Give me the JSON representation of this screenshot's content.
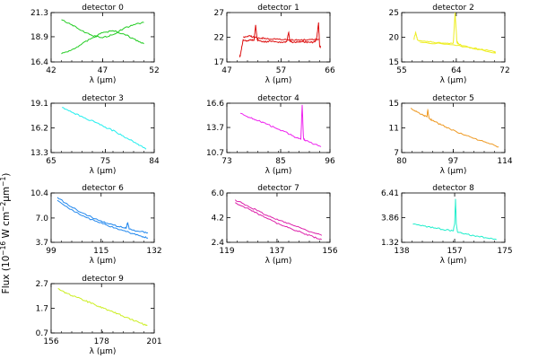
{
  "figure": {
    "ylabel_main": "Flux (10",
    "ylabel_exp1": "−16",
    "ylabel_mid": " W cm",
    "ylabel_exp2": "−2",
    "ylabel_mid2": "μm",
    "ylabel_exp3": "−1",
    "ylabel_close": ")",
    "xlabel": "λ (μm)"
  },
  "chart_data": [
    {
      "type": "line",
      "title": "detector 0",
      "color": "#22cc22",
      "xlim": [
        42,
        52
      ],
      "ylim": [
        16.4,
        21.3
      ],
      "xticks": [
        "42",
        "47",
        "52"
      ],
      "yticks": [
        "16.4",
        "18.9",
        "21.3"
      ],
      "series": [
        {
          "x": [
            43,
            44,
            45,
            46,
            47,
            48,
            49,
            50,
            51
          ],
          "y": [
            20.6,
            20.1,
            19.5,
            19.0,
            18.8,
            19.1,
            19.7,
            20.1,
            20.3
          ]
        },
        {
          "x": [
            43,
            44,
            45,
            46,
            47,
            48,
            49,
            50,
            51
          ],
          "y": [
            17.2,
            17.6,
            18.2,
            18.8,
            19.3,
            19.5,
            19.2,
            18.7,
            18.2
          ]
        }
      ]
    },
    {
      "type": "line",
      "title": "detector 1",
      "color": "#dd1111",
      "xlim": [
        47,
        66
      ],
      "ylim": [
        17,
        27
      ],
      "xticks": [
        "47",
        "57",
        "66"
      ],
      "yticks": [
        "17",
        "22",
        "27"
      ],
      "series": [
        {
          "x": [
            49.3,
            49.5,
            50.0,
            50.8,
            51.5,
            52.0,
            52.3,
            52.6,
            53.0,
            54.0,
            55.0,
            56.0,
            57.0,
            58.0,
            58.4,
            58.6,
            59.0,
            60.0,
            61.0,
            62.0,
            63.0,
            63.5,
            63.9,
            64.1,
            64.3
          ],
          "y": [
            18.0,
            18.5,
            21.5,
            21.3,
            21.5,
            21.3,
            24.5,
            21.5,
            21.3,
            21.1,
            21.2,
            21.1,
            21.0,
            21.1,
            23.0,
            21.2,
            21.0,
            21.0,
            21.1,
            21.0,
            21.0,
            21.4,
            25.0,
            20.0,
            20.2
          ]
        },
        {
          "x": [
            50.0,
            51.0,
            52.0,
            53.0,
            54.0,
            56.0,
            58.0,
            60.0,
            62.0,
            64.0
          ],
          "y": [
            22.0,
            22.3,
            22.0,
            21.8,
            21.8,
            21.6,
            21.5,
            21.4,
            21.5,
            21.6
          ]
        }
      ]
    },
    {
      "type": "line",
      "title": "detector 2",
      "color": "#eeee22",
      "xlim": [
        55,
        72
      ],
      "ylim": [
        15,
        25
      ],
      "xticks": [
        "55",
        "64",
        "72"
      ],
      "yticks": [
        "15",
        "20",
        "25"
      ],
      "series": [
        {
          "x": [
            57.0,
            57.3,
            57.6,
            58.0,
            60.0,
            62.0,
            63.5,
            63.8,
            64.1,
            64.5,
            66.0,
            68.0,
            70.0,
            70.5
          ],
          "y": [
            19.5,
            21.0,
            19.5,
            19.3,
            19.0,
            18.8,
            18.8,
            25.0,
            19.0,
            18.5,
            18.0,
            17.5,
            17.2,
            17.0
          ]
        },
        {
          "x": [
            58.0,
            62.0,
            66.0,
            70.5
          ],
          "y": [
            19.0,
            18.6,
            18.0,
            16.8
          ]
        }
      ]
    },
    {
      "type": "line",
      "title": "detector 3",
      "color": "#22eeee",
      "xlim": [
        65,
        84
      ],
      "ylim": [
        13.3,
        19.1
      ],
      "xticks": [
        "65",
        "75",
        "84"
      ],
      "yticks": [
        "13.3",
        "16.2",
        "19.1"
      ],
      "series": [
        {
          "x": [
            67,
            69,
            71,
            73,
            75,
            77,
            79,
            81,
            82.5
          ],
          "y": [
            18.6,
            18.0,
            17.4,
            16.9,
            16.3,
            15.7,
            15.0,
            14.3,
            13.7
          ]
        }
      ]
    },
    {
      "type": "line",
      "title": "detector 4",
      "color": "#ee22ee",
      "xlim": [
        73,
        96
      ],
      "ylim": [
        10.7,
        16.6
      ],
      "xticks": [
        "73",
        "85",
        "96"
      ],
      "yticks": [
        "10.7",
        "13.7",
        "16.6"
      ],
      "series": [
        {
          "x": [
            76,
            78,
            80,
            82,
            84,
            86,
            88,
            89.5,
            89.8,
            90.1,
            90.4,
            92,
            94
          ],
          "y": [
            15.4,
            14.9,
            14.5,
            14.1,
            13.6,
            13.2,
            12.6,
            12.3,
            16.4,
            12.4,
            12.2,
            11.8,
            11.4
          ]
        }
      ]
    },
    {
      "type": "line",
      "title": "detector 5",
      "color": "#ee9922",
      "xlim": [
        80,
        114
      ],
      "ylim": [
        7,
        15
      ],
      "xticks": [
        "80",
        "97",
        "114"
      ],
      "yticks": [
        "7",
        "11",
        "15"
      ],
      "series": [
        {
          "x": [
            83,
            85,
            87,
            88.3,
            88.6,
            89.0,
            90,
            93,
            96,
            100,
            104,
            108,
            112
          ],
          "y": [
            14.2,
            13.6,
            13.1,
            12.8,
            13.9,
            12.6,
            12.2,
            11.5,
            10.8,
            10.0,
            9.3,
            8.6,
            7.9
          ]
        }
      ]
    },
    {
      "type": "line",
      "title": "detector 6",
      "color": "#2288ee",
      "xlim": [
        99,
        132
      ],
      "ylim": [
        3.7,
        10.4
      ],
      "xticks": [
        "99",
        "115",
        "132"
      ],
      "yticks": [
        "3.7",
        "7.0",
        "10.4"
      ],
      "series": [
        {
          "x": [
            101,
            105,
            109,
            113,
            117,
            121,
            123,
            123.5,
            124,
            127,
            130
          ],
          "y": [
            9.8,
            8.6,
            7.7,
            6.9,
            6.3,
            5.8,
            5.6,
            6.4,
            5.5,
            5.2,
            5.0
          ]
        },
        {
          "x": [
            101,
            105,
            109,
            113,
            117,
            121,
            125,
            128,
            130
          ],
          "y": [
            9.4,
            8.2,
            7.3,
            6.6,
            6.0,
            5.4,
            4.9,
            4.5,
            4.3
          ]
        }
      ]
    },
    {
      "type": "line",
      "title": "detector 7",
      "color": "#dd22aa",
      "xlim": [
        119,
        156
      ],
      "ylim": [
        2.4,
        6.0
      ],
      "xticks": [
        "119",
        "137",
        "156"
      ],
      "yticks": [
        "2.4",
        "4.2",
        "6.0"
      ],
      "series": [
        {
          "x": [
            122,
            126,
            130,
            134,
            138,
            142,
            146,
            150,
            153
          ],
          "y": [
            5.5,
            5.1,
            4.7,
            4.3,
            4.0,
            3.7,
            3.4,
            3.1,
            2.9
          ]
        },
        {
          "x": [
            122,
            126,
            130,
            134,
            138,
            142,
            146,
            150,
            153
          ],
          "y": [
            5.3,
            4.9,
            4.5,
            4.1,
            3.7,
            3.4,
            3.1,
            2.8,
            2.6
          ]
        }
      ]
    },
    {
      "type": "line",
      "title": "detector 8",
      "color": "#22eecc",
      "xlim": [
        138,
        175
      ],
      "ylim": [
        1.32,
        6.41
      ],
      "xticks": [
        "138",
        "157",
        "175"
      ],
      "yticks": [
        "1.32",
        "3.86",
        "6.41"
      ],
      "series": [
        {
          "x": [
            142,
            146,
            150,
            154,
            156.5,
            157.0,
            157.3,
            157.6,
            158.0,
            160,
            164,
            168,
            172
          ],
          "y": [
            3.2,
            3.0,
            2.8,
            2.6,
            2.5,
            3.3,
            5.8,
            3.2,
            2.4,
            2.2,
            2.0,
            1.8,
            1.6
          ]
        }
      ]
    },
    {
      "type": "line",
      "title": "detector 9",
      "color": "#ccee22",
      "xlim": [
        156,
        201
      ],
      "ylim": [
        0.7,
        2.7
      ],
      "xticks": [
        "156",
        "178",
        "201"
      ],
      "yticks": [
        "0.7",
        "1.7",
        "2.7"
      ],
      "series": [
        {
          "x": [
            159,
            163,
            167,
            171,
            175,
            179,
            183,
            187,
            191,
            195,
            198
          ],
          "y": [
            2.5,
            2.3,
            2.15,
            2.0,
            1.85,
            1.7,
            1.55,
            1.4,
            1.25,
            1.1,
            1.0
          ]
        }
      ]
    }
  ]
}
